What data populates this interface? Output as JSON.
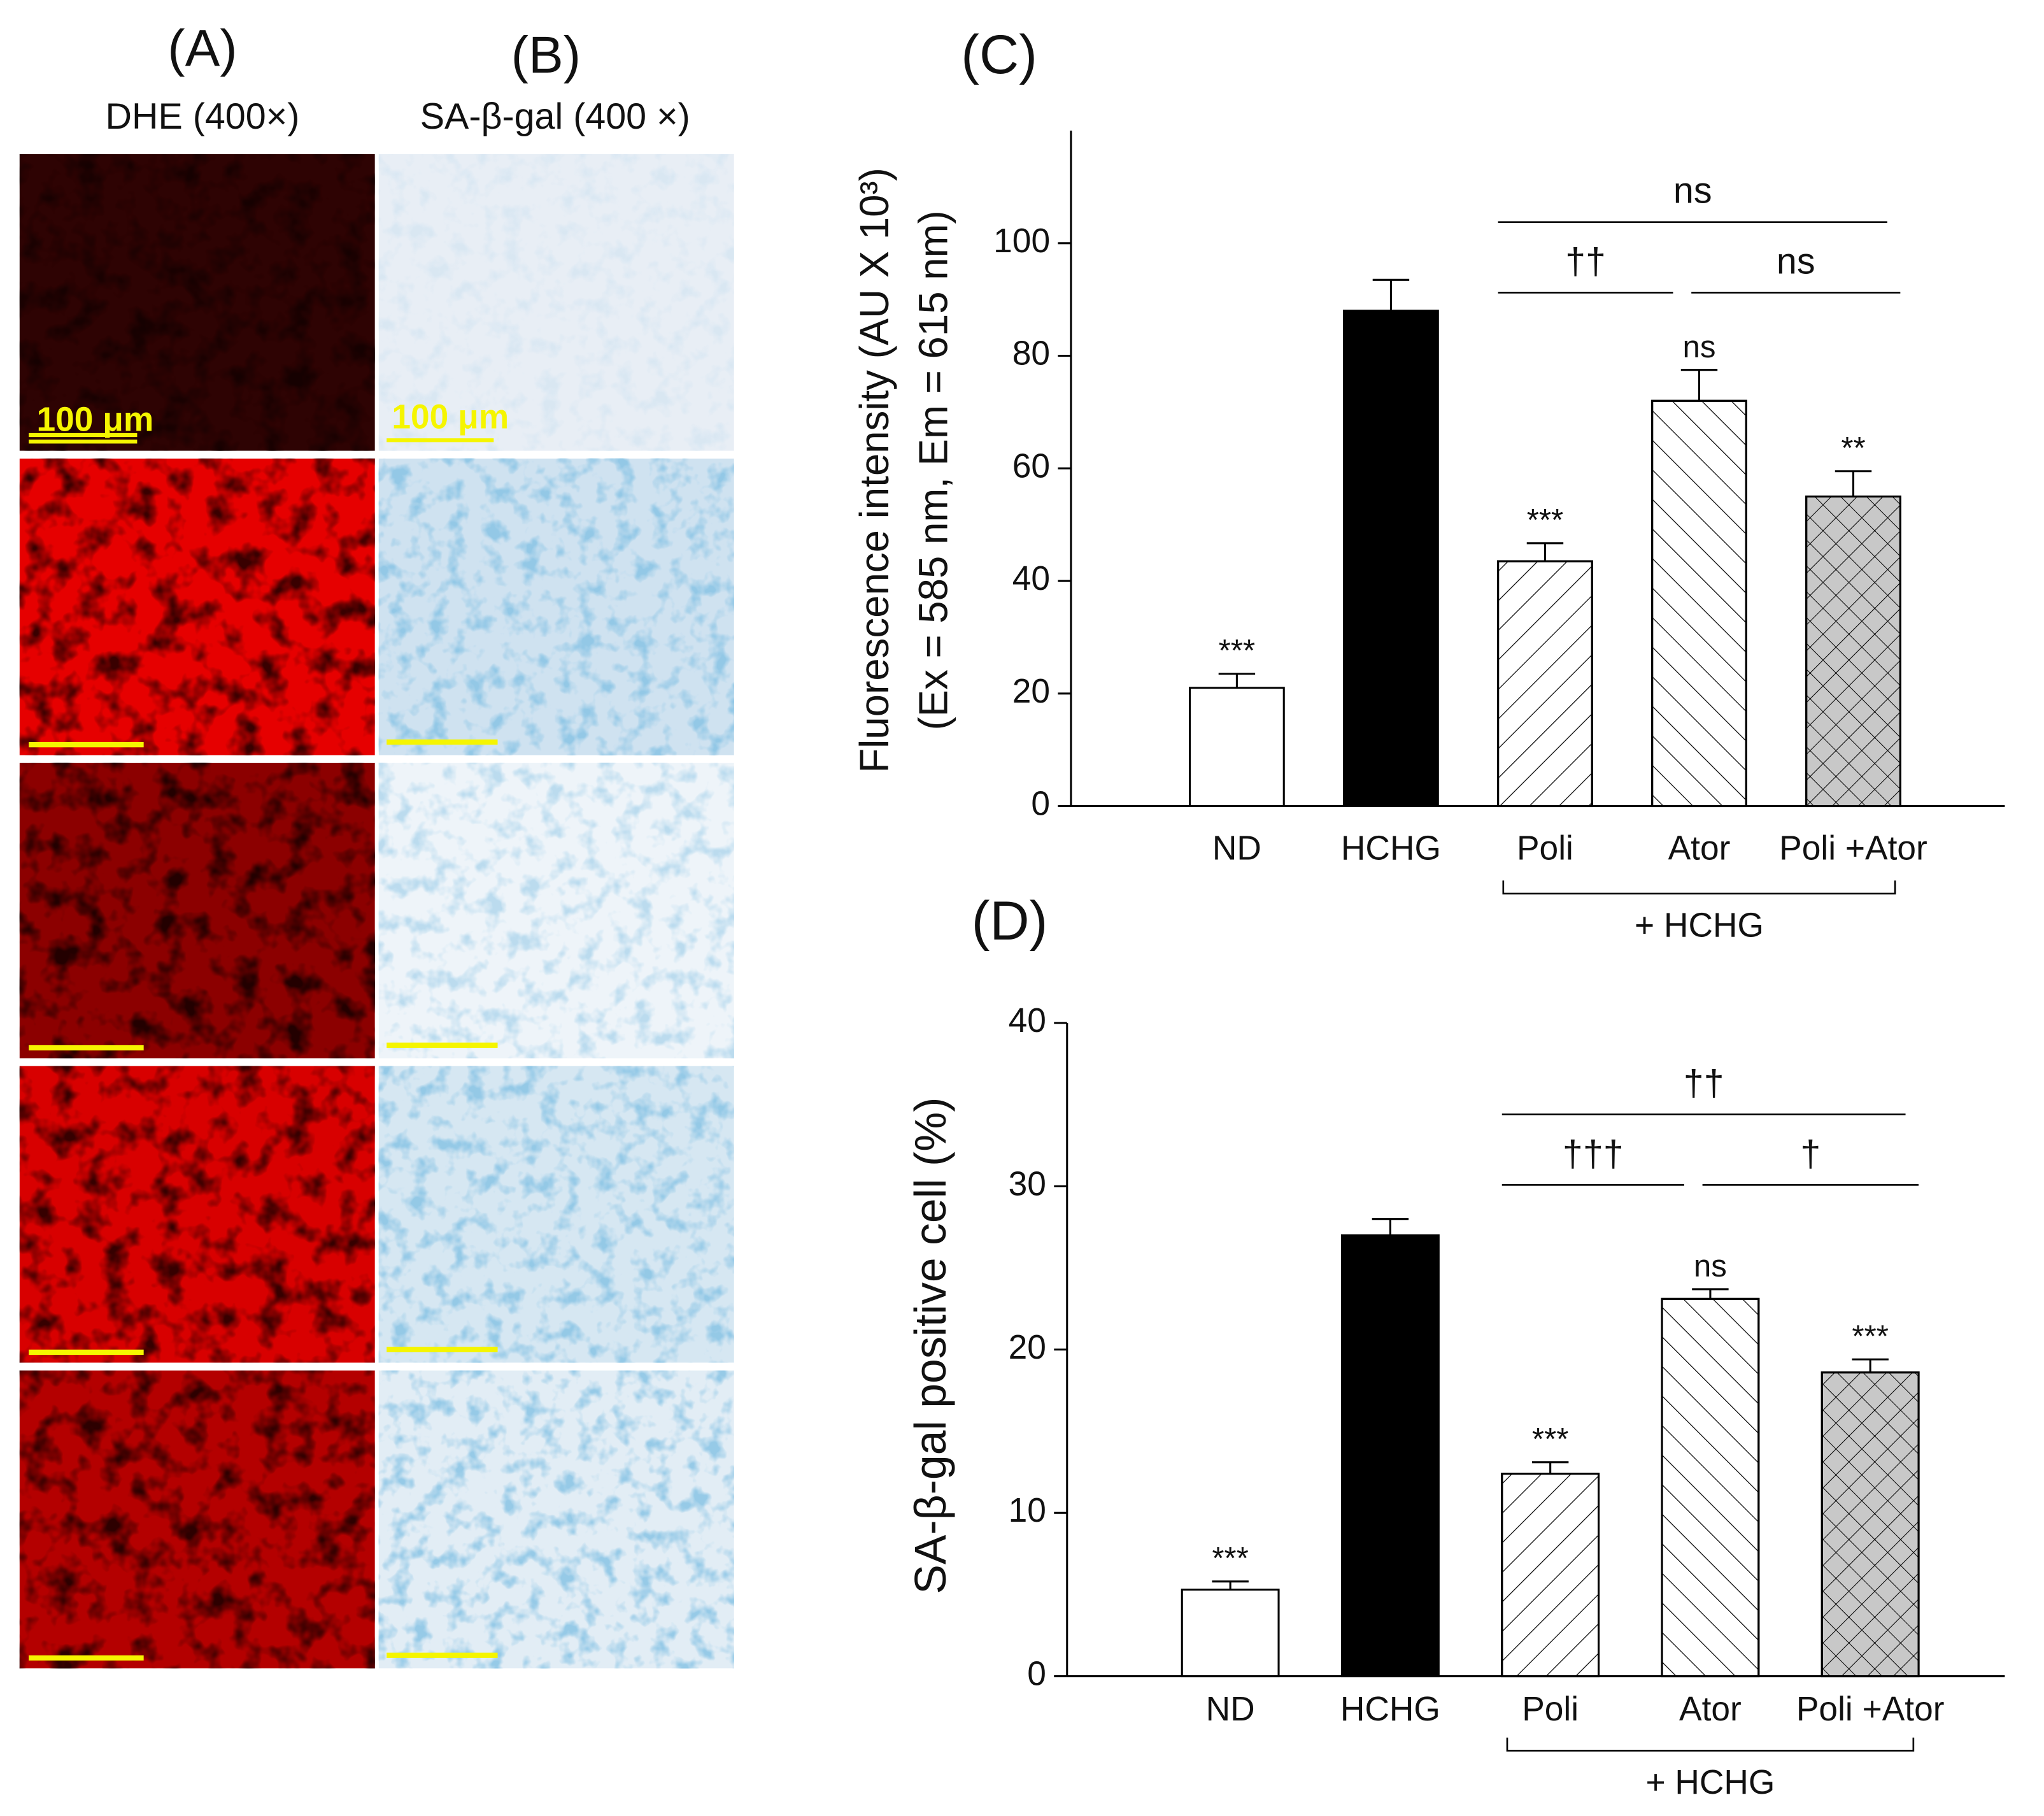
{
  "micrographs": {
    "A": {
      "label": "(A)",
      "caption": "DHE (400×)",
      "scale": "100 μm"
    },
    "B": {
      "label": "(B)",
      "caption": "SA-β-gal (400 ×)",
      "scale": "100 μm"
    }
  },
  "chart_data": [
    {
      "type": "bar",
      "title": "(C)",
      "y_label": [
        "Fluorescence intensity (AU X 10³)",
        "(Ex = 585 nm, Em = 615 nm)"
      ],
      "categories": [
        "ND",
        "HCHG",
        "Poli",
        "Ator",
        "Poli +Ator"
      ],
      "series": [
        {
          "values": [
            21,
            88,
            43.5,
            72,
            55
          ],
          "errors": [
            2.5,
            5.5,
            3.2,
            5.5,
            4.5
          ],
          "colors": [
            "#ffffff",
            "#000000",
            "#ffffff",
            "#ffffff",
            "#c8c8c8"
          ],
          "hatches": [
            null,
            null,
            "/",
            "\\",
            "x"
          ]
        }
      ],
      "annotations": [
        "***",
        null,
        "***",
        "ns",
        "**"
      ],
      "comparisons": [
        {
          "from": 2,
          "to": 4,
          "label": "ns"
        },
        {
          "from": 2,
          "to": 3,
          "label": "††"
        },
        {
          "from": 3,
          "to": 4,
          "label": "ns"
        }
      ],
      "group": {
        "from": 2,
        "to": 4,
        "label": "+ HCHG"
      },
      "ylim": [
        0,
        120
      ],
      "yticks": [
        0,
        20,
        40,
        60,
        80,
        100
      ],
      "grid": false
    },
    {
      "type": "bar",
      "title": "(D)",
      "y_label": [
        "SA-β-gal positive cell (%)"
      ],
      "categories": [
        "ND",
        "HCHG",
        "Poli",
        "Ator",
        "Poli +Ator"
      ],
      "series": [
        {
          "values": [
            5.3,
            27,
            12.4,
            23.1,
            18.6
          ],
          "errors": [
            0.5,
            1.0,
            0.7,
            0.6,
            0.8
          ],
          "colors": [
            "#ffffff",
            "#000000",
            "#ffffff",
            "#ffffff",
            "#c8c8c8"
          ],
          "hatches": [
            null,
            null,
            "/",
            "\\",
            "x"
          ]
        }
      ],
      "annotations": [
        "***",
        null,
        "***",
        "ns",
        "***"
      ],
      "comparisons": [
        {
          "from": 2,
          "to": 4,
          "label": "††"
        },
        {
          "from": 2,
          "to": 3,
          "label": "†††"
        },
        {
          "from": 3,
          "to": 4,
          "label": "†"
        }
      ],
      "group": {
        "from": 2,
        "to": 4,
        "label": "+ HCHG"
      },
      "ylim": [
        0,
        40
      ],
      "yticks": [
        0,
        10,
        20,
        30,
        40
      ],
      "grid": false
    }
  ]
}
